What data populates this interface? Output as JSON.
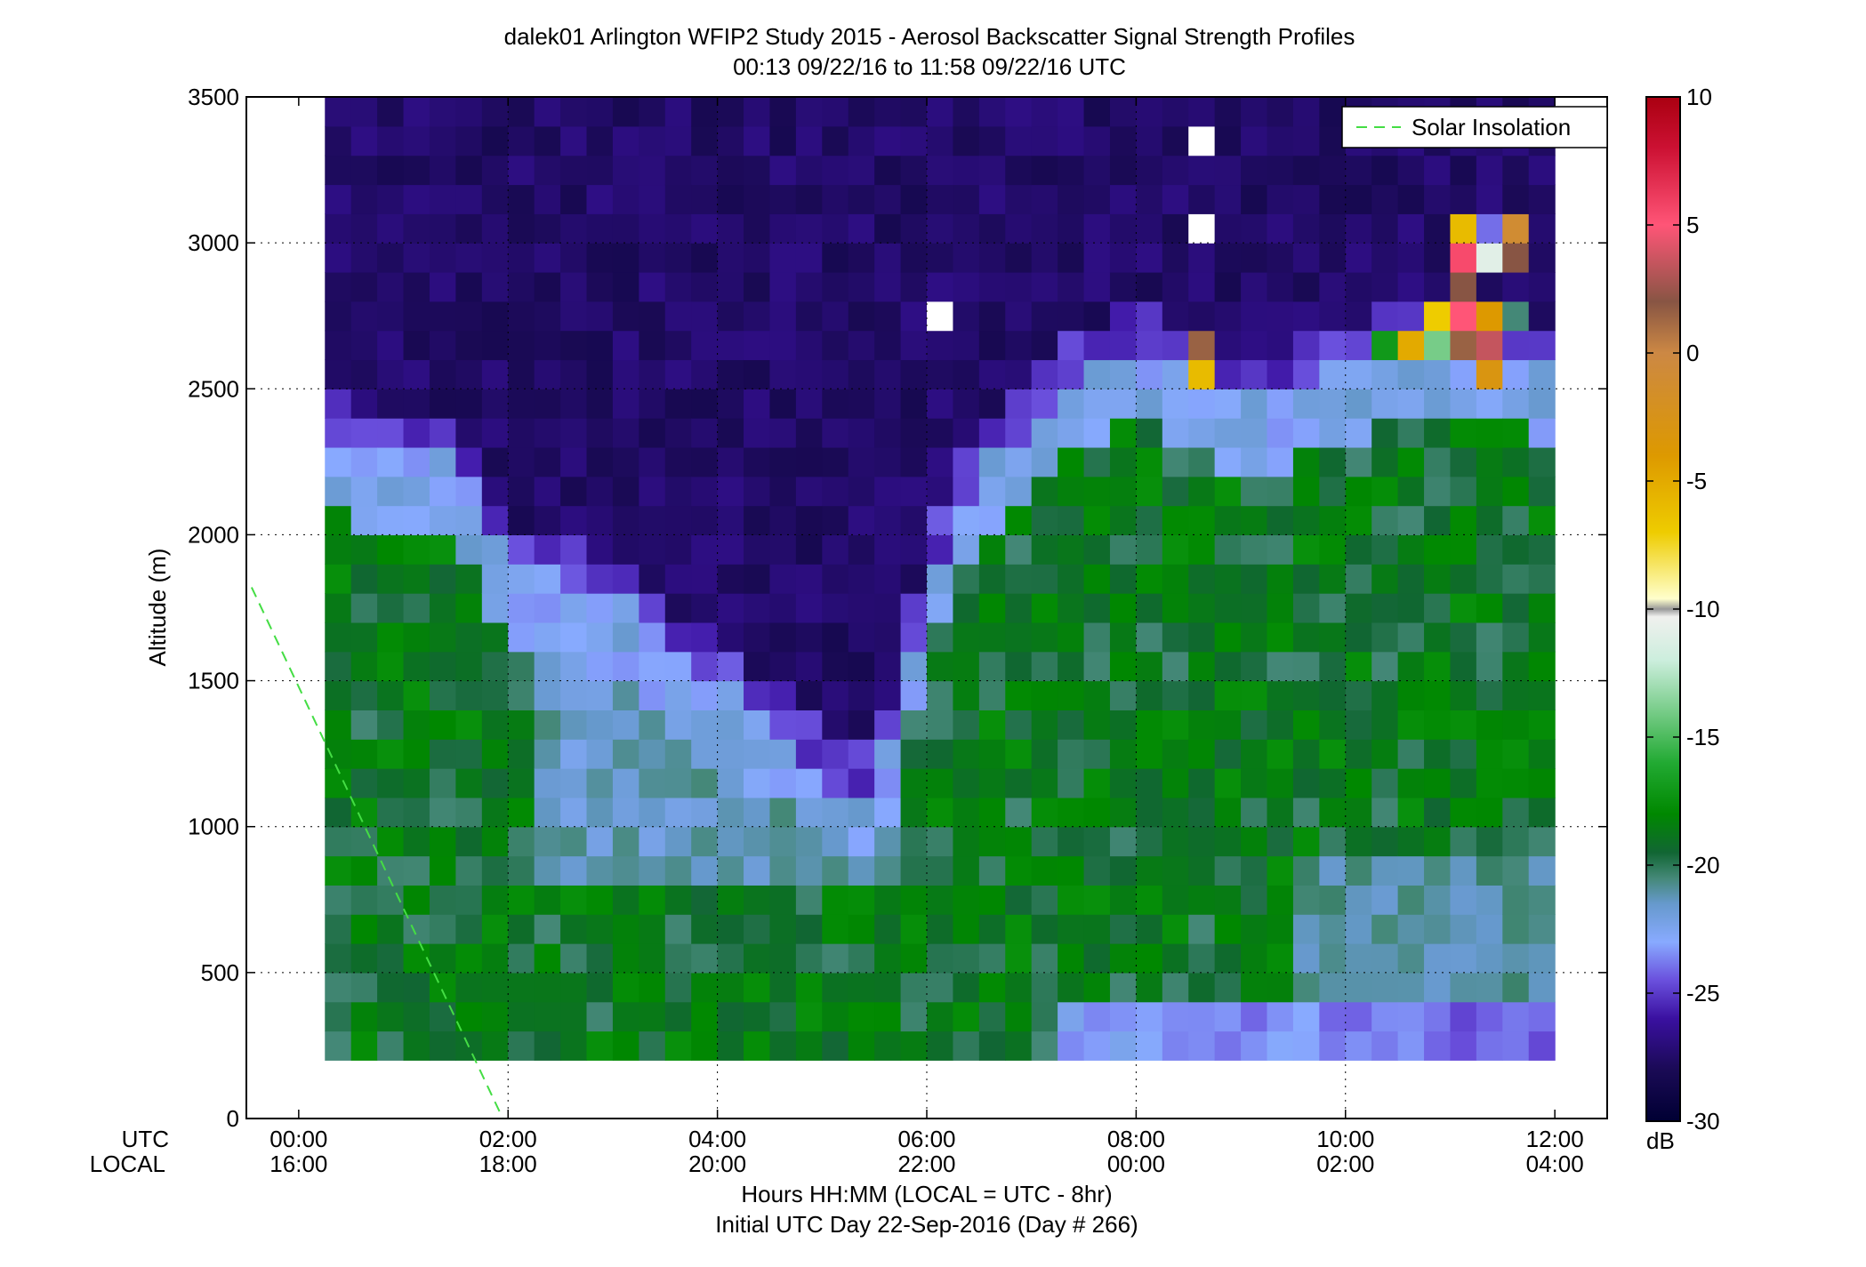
{
  "chart_data": {
    "type": "heatmap",
    "title": "dalek01 Arlington WFIP2 Study 2015 - Aerosol Backscatter Signal Strength Profiles",
    "subtitle": "00:13 09/22/16 to 11:58 09/22/16  UTC",
    "ylabel": "Altitude (m)",
    "xlabel": "Hours HH:MM  (LOCAL = UTC - 8hr)",
    "xlabel2": "Initial UTC Day 22-Sep-2016 (Day # 266)",
    "x_row_labels": {
      "utc": "UTC",
      "local": "LOCAL"
    },
    "x_ticks_utc": [
      "00:00",
      "02:00",
      "04:00",
      "06:00",
      "08:00",
      "10:00",
      "12:00"
    ],
    "x_ticks_local": [
      "16:00",
      "18:00",
      "20:00",
      "22:00",
      "00:00",
      "02:00",
      "04:00"
    ],
    "x_tick_hours": [
      0,
      2,
      4,
      6,
      8,
      10,
      12
    ],
    "xlim_hours": [
      -0.5,
      12.5
    ],
    "y_ticks": [
      "0",
      "500",
      "1000",
      "1500",
      "2000",
      "2500",
      "3000",
      "3500"
    ],
    "ylim": [
      0,
      3500
    ],
    "grid": true,
    "legend": {
      "position": "top-right",
      "entries": [
        {
          "label": "Solar Insolation",
          "color": "#44dd44",
          "style": "dashed"
        }
      ]
    },
    "solar_insolation_line": {
      "x_hours": [
        -0.45,
        1.95
      ],
      "y_m": [
        1820,
        0
      ]
    },
    "colorbar": {
      "unit": "dB",
      "range": [
        -30,
        10
      ],
      "ticks": [
        "10",
        "5",
        "0",
        "-5",
        "-10",
        "-15",
        "-20",
        "-25",
        "-30"
      ],
      "stops": [
        {
          "v": -30,
          "c": "#000033"
        },
        {
          "v": -28,
          "c": "#1a0a55"
        },
        {
          "v": -26,
          "c": "#3a10a0"
        },
        {
          "v": -24.5,
          "c": "#6a50dd"
        },
        {
          "v": -23,
          "c": "#88aaff"
        },
        {
          "v": -21.5,
          "c": "#6699cc"
        },
        {
          "v": -20.5,
          "c": "#448877"
        },
        {
          "v": -19.5,
          "c": "#116633"
        },
        {
          "v": -18,
          "c": "#008800"
        },
        {
          "v": -16,
          "c": "#22aa33"
        },
        {
          "v": -14,
          "c": "#77cc88"
        },
        {
          "v": -12,
          "c": "#cceedd"
        },
        {
          "v": -10.3,
          "c": "#f0f0ee"
        },
        {
          "v": -10,
          "c": "#999999"
        },
        {
          "v": -9.6,
          "c": "#ffffcc"
        },
        {
          "v": -7,
          "c": "#eecc00"
        },
        {
          "v": -4,
          "c": "#dd9900"
        },
        {
          "v": 0,
          "c": "#cc8844"
        },
        {
          "v": 2,
          "c": "#885544"
        },
        {
          "v": 5,
          "c": "#ff5577"
        },
        {
          "v": 8,
          "c": "#cc1133"
        },
        {
          "v": 10,
          "c": "#aa0011"
        }
      ]
    },
    "data_start_hour": 0.25,
    "column_width_hours": 0.25,
    "altitudes_m": [
      250,
      350,
      450,
      550,
      650,
      750,
      850,
      950,
      1050,
      1150,
      1250,
      1350,
      1450,
      1550,
      1650,
      1750,
      1850,
      1950,
      2050,
      2150,
      2250,
      2350,
      2450,
      2550,
      2650,
      2750,
      2850,
      2950,
      3050,
      3150,
      3250,
      3350,
      3450
    ],
    "overrides": [
      {
        "h": 8.625,
        "alt": 3350,
        "v": "blank"
      },
      {
        "h": 8.625,
        "alt": 3050,
        "v": "blank"
      },
      {
        "h": 6.125,
        "alt": 2750,
        "v": "blank"
      },
      {
        "h": 10.875,
        "alt": 2750,
        "v": -7
      },
      {
        "h": 11.125,
        "alt": 2750,
        "v": 5
      },
      {
        "h": 11.375,
        "alt": 2750,
        "v": -4
      },
      {
        "h": 11.125,
        "alt": 3050,
        "v": -6
      },
      {
        "h": 11.125,
        "alt": 2950,
        "v": 5.5
      },
      {
        "h": 11.375,
        "alt": 2950,
        "v": -11
      },
      {
        "h": 11.625,
        "alt": 2950,
        "v": 2
      },
      {
        "h": 11.625,
        "alt": 3050,
        "v": -1
      },
      {
        "h": 11.375,
        "alt": 3050,
        "v": -24
      },
      {
        "h": 11.125,
        "alt": 2850,
        "v": 2
      },
      {
        "h": 11.375,
        "alt": 2650,
        "v": 3.5
      },
      {
        "h": 11.125,
        "alt": 2650,
        "v": 1.5
      },
      {
        "h": 10.625,
        "alt": 2650,
        "v": -5
      },
      {
        "h": 10.875,
        "alt": 2650,
        "v": -14
      },
      {
        "h": 11.375,
        "alt": 2550,
        "v": -3
      },
      {
        "h": 8.625,
        "alt": 2650,
        "v": 1.5
      },
      {
        "h": 8.625,
        "alt": 2550,
        "v": -6
      },
      {
        "h": 10.375,
        "alt": 2650,
        "v": -17
      },
      {
        "h": 11.625,
        "alt": 2750,
        "v": -20.5
      }
    ],
    "boundary_layer_top_m": [
      {
        "h": 0.25,
        "top": 2230
      },
      {
        "h": 0.6,
        "top": 2180
      },
      {
        "h": 1.4,
        "top": 2200
      },
      {
        "h": 1.6,
        "top": 2070
      },
      {
        "h": 1.9,
        "top": 1830
      },
      {
        "h": 2.3,
        "top": 1760
      },
      {
        "h": 2.7,
        "top": 1720
      },
      {
        "h": 3.1,
        "top": 1660
      },
      {
        "h": 3.5,
        "top": 1540
      },
      {
        "h": 3.9,
        "top": 1400
      },
      {
        "h": 4.3,
        "top": 1300
      },
      {
        "h": 4.7,
        "top": 1190
      },
      {
        "h": 5.1,
        "top": 1010
      },
      {
        "h": 5.5,
        "top": 1010
      },
      {
        "h": 5.8,
        "top": 1420
      },
      {
        "h": 6.1,
        "top": 1780
      },
      {
        "h": 6.5,
        "top": 2130
      },
      {
        "h": 7.0,
        "top": 2260
      },
      {
        "h": 7.5,
        "top": 2450
      },
      {
        "h": 8.0,
        "top": 2520
      },
      {
        "h": 8.6,
        "top": 2440
      },
      {
        "h": 9.0,
        "top": 2380
      },
      {
        "h": 9.5,
        "top": 2400
      },
      {
        "h": 10.0,
        "top": 2450
      },
      {
        "h": 10.5,
        "top": 2520
      },
      {
        "h": 11.0,
        "top": 2580
      },
      {
        "h": 11.5,
        "top": 2520
      },
      {
        "h": 12.0,
        "top": 2450
      }
    ]
  }
}
